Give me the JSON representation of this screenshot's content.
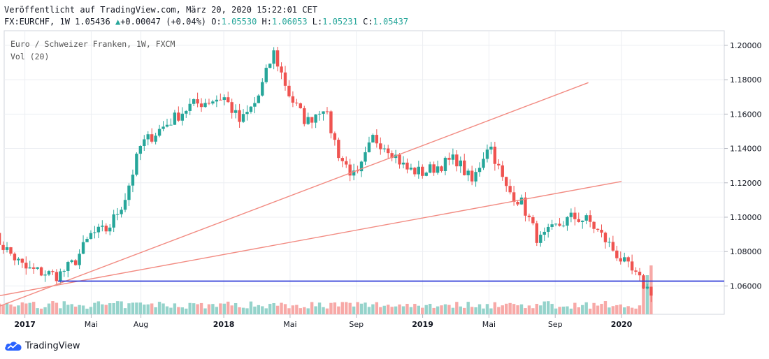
{
  "header": {
    "published": "Veröffentlicht auf TradingView.com, März 20, 2020 15:22:01 CET",
    "symbol": "FX:EURCHF, 1W",
    "last": "1.05436",
    "change_arrow": "▲",
    "change": "+0.00047 (+0.04%)",
    "o_label": "O:",
    "o_value": "1.05530",
    "h_label": "H:",
    "h_value": "1.06053",
    "l_label": "L:",
    "l_value": "1.05231",
    "c_label": "C:",
    "c_value": "1.05437"
  },
  "legend": {
    "instrument": "Euro / Schweizer Franken, 1W, FXCM",
    "volume": "Vol (20)"
  },
  "brand": {
    "name": "TradingView",
    "logo_icon": "tradingview-cloud-icon"
  },
  "colors": {
    "up": "#26a69a",
    "down": "#ef5350",
    "vol_up": "#95d3cb",
    "vol_down": "#f7a9a7",
    "trendline": "#f28b82",
    "support": "#2f3bd8",
    "grid": "#eceef2"
  },
  "chart_data": {
    "type": "candlestick",
    "title": "Euro / Schweizer Franken, 1W, FXCM",
    "x_tick_labels": [
      "2017",
      "Mai",
      "Aug",
      "2018",
      "Mai",
      "Sep",
      "2019",
      "Mai",
      "Sep",
      "2020"
    ],
    "y_tick_labels": [
      "1.20000",
      "1.18000",
      "1.16000",
      "1.14000",
      "1.12000",
      "1.10000",
      "1.08000",
      "1.06000"
    ],
    "ylim": [
      1.0435,
      1.2085
    ],
    "grid": true,
    "volume_indicator": "Vol (20)",
    "support_line": 1.0628,
    "trendlines": [
      {
        "from": [
          "2016-11",
          1.0465
        ],
        "to": [
          "2019-11",
          1.1783
        ]
      },
      {
        "from": [
          "2016-11",
          1.0535
        ],
        "to": [
          "2020-01",
          1.1208
        ]
      }
    ],
    "close_path": [
      [
        "2016-11",
        1.09
      ],
      [
        "2016-12",
        1.08
      ],
      [
        "2017-01",
        1.07
      ],
      [
        "2017-03",
        1.066
      ],
      [
        "2017-04",
        1.074
      ],
      [
        "2017-05",
        1.09
      ],
      [
        "2017-06",
        1.093
      ],
      [
        "2017-07",
        1.11
      ],
      [
        "2017-08",
        1.142
      ],
      [
        "2017-09",
        1.15
      ],
      [
        "2017-11",
        1.165
      ],
      [
        "2018-01",
        1.17
      ],
      [
        "2018-02",
        1.155
      ],
      [
        "2018-03",
        1.168
      ],
      [
        "2018-04",
        1.196
      ],
      [
        "2018-05",
        1.17
      ],
      [
        "2018-06",
        1.155
      ],
      [
        "2018-07",
        1.165
      ],
      [
        "2018-08",
        1.135
      ],
      [
        "2018-09",
        1.122
      ],
      [
        "2018-10",
        1.146
      ],
      [
        "2018-11",
        1.14
      ],
      [
        "2018-12",
        1.128
      ],
      [
        "2019-01",
        1.126
      ],
      [
        "2019-03",
        1.134
      ],
      [
        "2019-04",
        1.12
      ],
      [
        "2019-05",
        1.144
      ],
      [
        "2019-06",
        1.117
      ],
      [
        "2019-07",
        1.108
      ],
      [
        "2019-08",
        1.086
      ],
      [
        "2019-09",
        1.094
      ],
      [
        "2019-10",
        1.1
      ],
      [
        "2019-11",
        1.098
      ],
      [
        "2019-12",
        1.087
      ],
      [
        "2020-01",
        1.075
      ],
      [
        "2020-02",
        1.064
      ],
      [
        "2020-03",
        1.054
      ]
    ],
    "last_close": 1.05437
  }
}
